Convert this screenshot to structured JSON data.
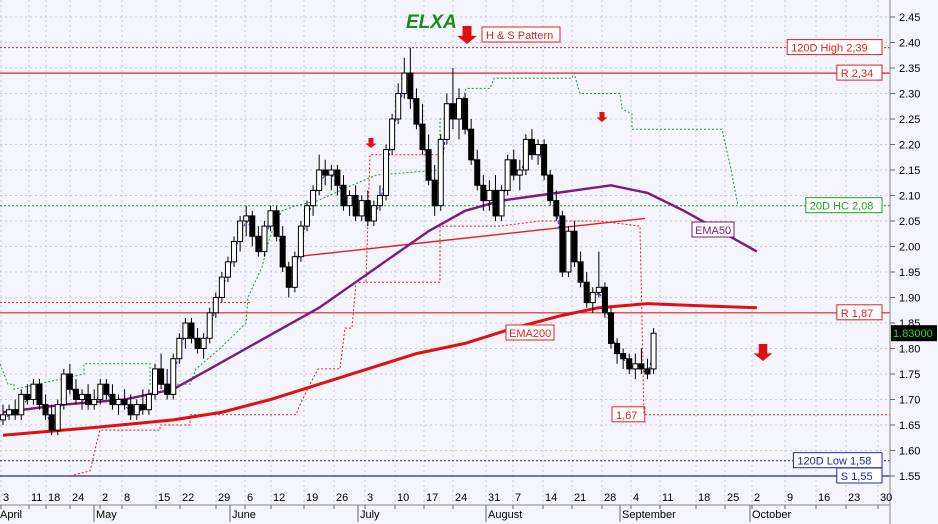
{
  "chart_data": {
    "type": "candlestick",
    "title": "ELXA",
    "ylim": [
      1.53,
      2.47
    ],
    "y_ticks": [
      1.55,
      1.6,
      1.65,
      1.7,
      1.75,
      1.8,
      1.85,
      1.9,
      1.95,
      2.0,
      2.05,
      2.1,
      2.15,
      2.2,
      2.25,
      2.3,
      2.35,
      2.4,
      2.45
    ],
    "y_tick_labels": [
      "1.55",
      "1.60",
      "1.65",
      "1.70",
      "1.75",
      "1.80",
      "1.85",
      "1.90",
      "1.95",
      "2.00",
      "2.05",
      "2.10",
      "2.15",
      "2.20",
      "2.25",
      "2.30",
      "2.35",
      "2.40",
      "2.45"
    ],
    "grid": true,
    "x_day_ticks": [
      "3",
      "11",
      "18",
      "24",
      "2",
      "8",
      "15",
      "22",
      "29",
      "6",
      "12",
      "19",
      "26",
      "3",
      "10",
      "17",
      "24",
      "31",
      "7",
      "14",
      "21",
      "28",
      "4",
      "11",
      "18",
      "25",
      "2",
      "9",
      "16",
      "23",
      "30"
    ],
    "x_months": [
      "April",
      "May",
      "June",
      "July",
      "August",
      "September",
      "October"
    ],
    "last_price_label": "1.83000",
    "levels": [
      {
        "label": "120D High 2,39",
        "value": 2.39,
        "style": "dotted",
        "color": "#e02020"
      },
      {
        "label": "R 2,34",
        "value": 2.34,
        "style": "solid",
        "color": "#e02020"
      },
      {
        "label": "20D HC 2,08",
        "value": 2.08,
        "style": "dotted",
        "color": "#20a020"
      },
      {
        "label": "R 1,87",
        "value": 1.87,
        "style": "solid",
        "color": "#e02020"
      },
      {
        "label": "1,67",
        "value": 1.67,
        "style": "dotted",
        "color": "#e02020"
      },
      {
        "label": "120D Low 1,58",
        "value": 1.58,
        "style": "dotted",
        "color": "#2020c0"
      },
      {
        "label": "S 1,55",
        "value": 1.55,
        "style": "solid",
        "color": "#2020c0"
      }
    ],
    "annotations": [
      {
        "label": "H & S Pattern",
        "color": "#e02020"
      },
      {
        "label": "EMA50",
        "color": "#7a1a7a"
      },
      {
        "label": "EMA200",
        "color": "#e02020"
      }
    ],
    "neckline": {
      "from": [
        1.98,
        1.98
      ],
      "to": [
        2.055,
        2.055
      ],
      "color": "#e02020"
    },
    "candles": [
      {
        "o": 1.66,
        "h": 1.69,
        "l": 1.65,
        "c": 1.67
      },
      {
        "o": 1.67,
        "h": 1.69,
        "l": 1.66,
        "c": 1.68
      },
      {
        "o": 1.68,
        "h": 1.7,
        "l": 1.66,
        "c": 1.67
      },
      {
        "o": 1.67,
        "h": 1.72,
        "l": 1.66,
        "c": 1.71
      },
      {
        "o": 1.71,
        "h": 1.73,
        "l": 1.69,
        "c": 1.7
      },
      {
        "o": 1.7,
        "h": 1.74,
        "l": 1.69,
        "c": 1.73
      },
      {
        "o": 1.73,
        "h": 1.74,
        "l": 1.68,
        "c": 1.69
      },
      {
        "o": 1.69,
        "h": 1.71,
        "l": 1.66,
        "c": 1.67
      },
      {
        "o": 1.67,
        "h": 1.69,
        "l": 1.63,
        "c": 1.64
      },
      {
        "o": 1.64,
        "h": 1.7,
        "l": 1.63,
        "c": 1.69
      },
      {
        "o": 1.69,
        "h": 1.76,
        "l": 1.68,
        "c": 1.75
      },
      {
        "o": 1.75,
        "h": 1.77,
        "l": 1.71,
        "c": 1.72
      },
      {
        "o": 1.72,
        "h": 1.74,
        "l": 1.69,
        "c": 1.7
      },
      {
        "o": 1.7,
        "h": 1.72,
        "l": 1.68,
        "c": 1.71
      },
      {
        "o": 1.71,
        "h": 1.73,
        "l": 1.68,
        "c": 1.69
      },
      {
        "o": 1.69,
        "h": 1.72,
        "l": 1.68,
        "c": 1.7
      },
      {
        "o": 1.7,
        "h": 1.74,
        "l": 1.69,
        "c": 1.73
      },
      {
        "o": 1.73,
        "h": 1.74,
        "l": 1.7,
        "c": 1.71
      },
      {
        "o": 1.71,
        "h": 1.73,
        "l": 1.68,
        "c": 1.69
      },
      {
        "o": 1.69,
        "h": 1.71,
        "l": 1.67,
        "c": 1.7
      },
      {
        "o": 1.7,
        "h": 1.72,
        "l": 1.68,
        "c": 1.69
      },
      {
        "o": 1.69,
        "h": 1.71,
        "l": 1.66,
        "c": 1.67
      },
      {
        "o": 1.67,
        "h": 1.7,
        "l": 1.66,
        "c": 1.69
      },
      {
        "o": 1.69,
        "h": 1.72,
        "l": 1.67,
        "c": 1.68
      },
      {
        "o": 1.68,
        "h": 1.72,
        "l": 1.67,
        "c": 1.71
      },
      {
        "o": 1.71,
        "h": 1.77,
        "l": 1.7,
        "c": 1.76
      },
      {
        "o": 1.76,
        "h": 1.79,
        "l": 1.72,
        "c": 1.73
      },
      {
        "o": 1.73,
        "h": 1.76,
        "l": 1.7,
        "c": 1.71
      },
      {
        "o": 1.71,
        "h": 1.79,
        "l": 1.7,
        "c": 1.78
      },
      {
        "o": 1.78,
        "h": 1.83,
        "l": 1.77,
        "c": 1.82
      },
      {
        "o": 1.82,
        "h": 1.86,
        "l": 1.8,
        "c": 1.85
      },
      {
        "o": 1.85,
        "h": 1.86,
        "l": 1.81,
        "c": 1.82
      },
      {
        "o": 1.82,
        "h": 1.84,
        "l": 1.79,
        "c": 1.8
      },
      {
        "o": 1.8,
        "h": 1.83,
        "l": 1.78,
        "c": 1.82
      },
      {
        "o": 1.82,
        "h": 1.88,
        "l": 1.81,
        "c": 1.87
      },
      {
        "o": 1.87,
        "h": 1.91,
        "l": 1.86,
        "c": 1.9
      },
      {
        "o": 1.9,
        "h": 1.95,
        "l": 1.89,
        "c": 1.94
      },
      {
        "o": 1.94,
        "h": 1.98,
        "l": 1.93,
        "c": 1.97
      },
      {
        "o": 1.97,
        "h": 2.02,
        "l": 1.96,
        "c": 2.01
      },
      {
        "o": 2.01,
        "h": 2.06,
        "l": 1.99,
        "c": 2.05
      },
      {
        "o": 2.05,
        "h": 2.08,
        "l": 2.02,
        "c": 2.06
      },
      {
        "o": 2.06,
        "h": 2.07,
        "l": 2.0,
        "c": 2.02
      },
      {
        "o": 2.02,
        "h": 2.04,
        "l": 1.98,
        "c": 1.99
      },
      {
        "o": 1.99,
        "h": 2.05,
        "l": 1.98,
        "c": 2.04
      },
      {
        "o": 2.04,
        "h": 2.08,
        "l": 2.03,
        "c": 2.07
      },
      {
        "o": 2.07,
        "h": 2.08,
        "l": 2.01,
        "c": 2.02
      },
      {
        "o": 2.02,
        "h": 2.04,
        "l": 1.95,
        "c": 1.96
      },
      {
        "o": 1.96,
        "h": 1.97,
        "l": 1.9,
        "c": 1.92
      },
      {
        "o": 1.92,
        "h": 1.99,
        "l": 1.91,
        "c": 1.98
      },
      {
        "o": 1.98,
        "h": 2.05,
        "l": 1.97,
        "c": 2.04
      },
      {
        "o": 2.04,
        "h": 2.09,
        "l": 2.03,
        "c": 2.08
      },
      {
        "o": 2.08,
        "h": 2.12,
        "l": 2.06,
        "c": 2.11
      },
      {
        "o": 2.11,
        "h": 2.18,
        "l": 2.1,
        "c": 2.15
      },
      {
        "o": 2.15,
        "h": 2.17,
        "l": 2.12,
        "c": 2.14
      },
      {
        "o": 2.14,
        "h": 2.16,
        "l": 2.11,
        "c": 2.15
      },
      {
        "o": 2.15,
        "h": 2.16,
        "l": 2.1,
        "c": 2.12
      },
      {
        "o": 2.12,
        "h": 2.14,
        "l": 2.07,
        "c": 2.08
      },
      {
        "o": 2.08,
        "h": 2.11,
        "l": 2.06,
        "c": 2.1
      },
      {
        "o": 2.1,
        "h": 2.12,
        "l": 2.05,
        "c": 2.06
      },
      {
        "o": 2.06,
        "h": 2.1,
        "l": 2.05,
        "c": 2.09
      },
      {
        "o": 2.09,
        "h": 2.11,
        "l": 2.04,
        "c": 2.05
      },
      {
        "o": 2.05,
        "h": 2.09,
        "l": 2.04,
        "c": 2.08
      },
      {
        "o": 2.08,
        "h": 2.12,
        "l": 2.07,
        "c": 2.1
      },
      {
        "o": 2.1,
        "h": 2.2,
        "l": 2.09,
        "c": 2.19
      },
      {
        "o": 2.19,
        "h": 2.26,
        "l": 2.18,
        "c": 2.25
      },
      {
        "o": 2.25,
        "h": 2.32,
        "l": 2.24,
        "c": 2.3
      },
      {
        "o": 2.3,
        "h": 2.37,
        "l": 2.29,
        "c": 2.34
      },
      {
        "o": 2.34,
        "h": 2.39,
        "l": 2.27,
        "c": 2.29
      },
      {
        "o": 2.29,
        "h": 2.31,
        "l": 2.23,
        "c": 2.24
      },
      {
        "o": 2.24,
        "h": 2.28,
        "l": 2.18,
        "c": 2.19
      },
      {
        "o": 2.19,
        "h": 2.22,
        "l": 2.12,
        "c": 2.13
      },
      {
        "o": 2.13,
        "h": 2.16,
        "l": 2.06,
        "c": 2.08
      },
      {
        "o": 2.08,
        "h": 2.22,
        "l": 2.07,
        "c": 2.21
      },
      {
        "o": 2.21,
        "h": 2.3,
        "l": 2.2,
        "c": 2.28
      },
      {
        "o": 2.28,
        "h": 2.35,
        "l": 2.23,
        "c": 2.25
      },
      {
        "o": 2.25,
        "h": 2.31,
        "l": 2.21,
        "c": 2.29
      },
      {
        "o": 2.29,
        "h": 2.3,
        "l": 2.22,
        "c": 2.23
      },
      {
        "o": 2.23,
        "h": 2.25,
        "l": 2.16,
        "c": 2.17
      },
      {
        "o": 2.17,
        "h": 2.19,
        "l": 2.11,
        "c": 2.12
      },
      {
        "o": 2.12,
        "h": 2.14,
        "l": 2.07,
        "c": 2.09
      },
      {
        "o": 2.09,
        "h": 2.13,
        "l": 2.07,
        "c": 2.11
      },
      {
        "o": 2.11,
        "h": 2.14,
        "l": 2.05,
        "c": 2.06
      },
      {
        "o": 2.06,
        "h": 2.12,
        "l": 2.05,
        "c": 2.11
      },
      {
        "o": 2.11,
        "h": 2.18,
        "l": 2.1,
        "c": 2.17
      },
      {
        "o": 2.17,
        "h": 2.19,
        "l": 2.13,
        "c": 2.14
      },
      {
        "o": 2.14,
        "h": 2.17,
        "l": 2.11,
        "c": 2.15
      },
      {
        "o": 2.15,
        "h": 2.22,
        "l": 2.14,
        "c": 2.21
      },
      {
        "o": 2.21,
        "h": 2.23,
        "l": 2.17,
        "c": 2.18
      },
      {
        "o": 2.18,
        "h": 2.21,
        "l": 2.16,
        "c": 2.2
      },
      {
        "o": 2.2,
        "h": 2.21,
        "l": 2.13,
        "c": 2.14
      },
      {
        "o": 2.14,
        "h": 2.15,
        "l": 2.08,
        "c": 2.09
      },
      {
        "o": 2.09,
        "h": 2.11,
        "l": 2.05,
        "c": 2.06
      },
      {
        "o": 2.06,
        "h": 2.07,
        "l": 1.94,
        "c": 1.95
      },
      {
        "o": 1.95,
        "h": 2.04,
        "l": 1.94,
        "c": 2.03
      },
      {
        "o": 2.03,
        "h": 2.05,
        "l": 1.96,
        "c": 1.97
      },
      {
        "o": 1.97,
        "h": 1.99,
        "l": 1.92,
        "c": 1.93
      },
      {
        "o": 1.93,
        "h": 1.95,
        "l": 1.88,
        "c": 1.89
      },
      {
        "o": 1.89,
        "h": 1.92,
        "l": 1.87,
        "c": 1.91
      },
      {
        "o": 1.91,
        "h": 1.99,
        "l": 1.9,
        "c": 1.92
      },
      {
        "o": 1.92,
        "h": 1.93,
        "l": 1.86,
        "c": 1.87
      },
      {
        "o": 1.87,
        "h": 1.88,
        "l": 1.8,
        "c": 1.81
      },
      {
        "o": 1.81,
        "h": 1.82,
        "l": 1.77,
        "c": 1.79
      },
      {
        "o": 1.79,
        "h": 1.8,
        "l": 1.76,
        "c": 1.78
      },
      {
        "o": 1.78,
        "h": 1.79,
        "l": 1.75,
        "c": 1.76
      },
      {
        "o": 1.76,
        "h": 1.79,
        "l": 1.74,
        "c": 1.77
      },
      {
        "o": 1.77,
        "h": 1.8,
        "l": 1.75,
        "c": 1.76
      },
      {
        "o": 1.76,
        "h": 1.78,
        "l": 1.74,
        "c": 1.75
      },
      {
        "o": 1.76,
        "h": 1.84,
        "l": 1.75,
        "c": 1.83
      }
    ],
    "ema50": [
      [
        0,
        1.675
      ],
      [
        10,
        1.69
      ],
      [
        20,
        1.7
      ],
      [
        28,
        1.72
      ],
      [
        34,
        1.76
      ],
      [
        40,
        1.8
      ],
      [
        46,
        1.84
      ],
      [
        52,
        1.88
      ],
      [
        58,
        1.93
      ],
      [
        64,
        1.98
      ],
      [
        70,
        2.03
      ],
      [
        76,
        2.07
      ],
      [
        82,
        2.09
      ],
      [
        88,
        2.1
      ],
      [
        94,
        2.11
      ],
      [
        100,
        2.12
      ],
      [
        106,
        2.105
      ],
      [
        112,
        2.07
      ],
      [
        118,
        2.03
      ],
      [
        124,
        1.99
      ]
    ],
    "ema200": [
      [
        0,
        1.63
      ],
      [
        15,
        1.645
      ],
      [
        28,
        1.66
      ],
      [
        36,
        1.675
      ],
      [
        44,
        1.7
      ],
      [
        52,
        1.73
      ],
      [
        60,
        1.76
      ],
      [
        68,
        1.79
      ],
      [
        76,
        1.81
      ],
      [
        84,
        1.84
      ],
      [
        92,
        1.865
      ],
      [
        98,
        1.88
      ],
      [
        106,
        1.888
      ],
      [
        114,
        1.884
      ],
      [
        124,
        1.88
      ]
    ]
  },
  "icons": {
    "title_arrow": "down-arrow-icon",
    "arrows": [
      "down-arrow-icon",
      "down-arrow-icon",
      "down-arrow-icon"
    ]
  }
}
